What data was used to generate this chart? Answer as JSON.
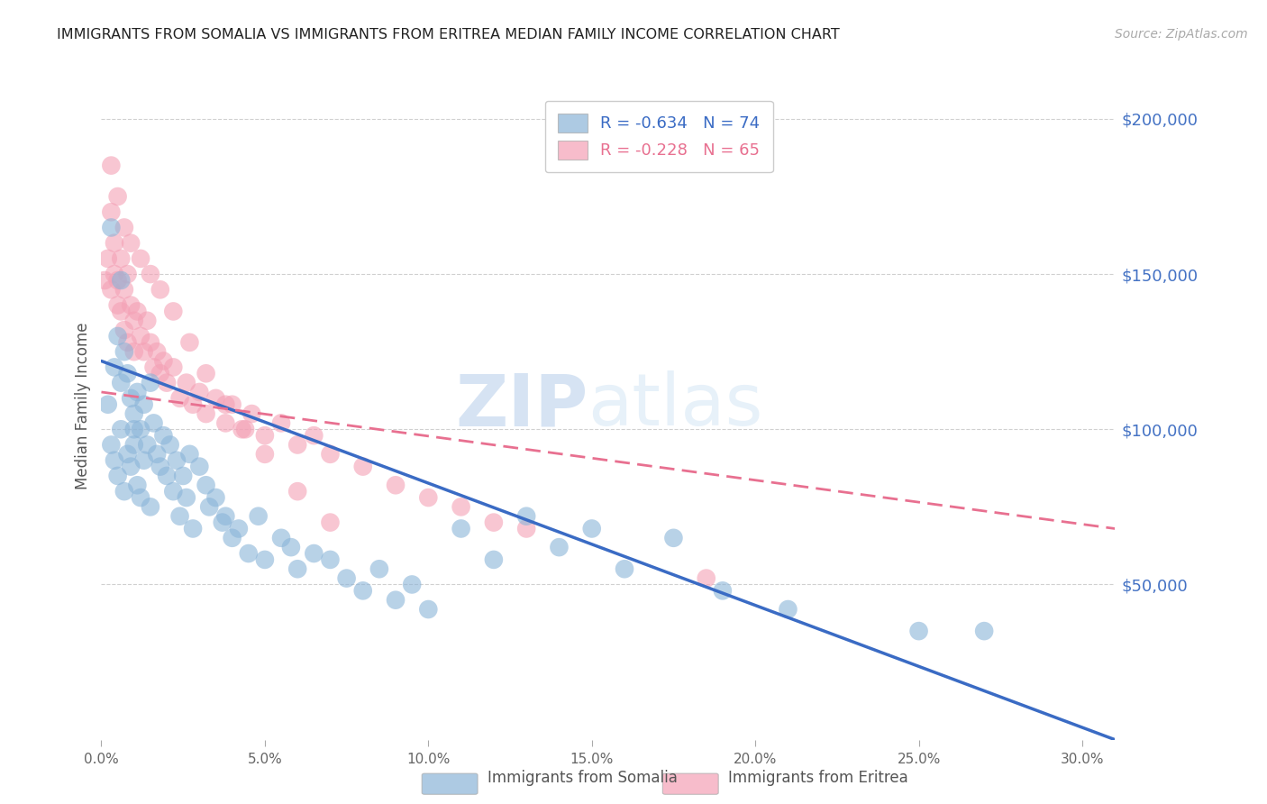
{
  "title": "IMMIGRANTS FROM SOMALIA VS IMMIGRANTS FROM ERITREA MEDIAN FAMILY INCOME CORRELATION CHART",
  "source": "Source: ZipAtlas.com",
  "ylabel": "Median Family Income",
  "xlim": [
    0.0,
    0.31
  ],
  "ylim": [
    0,
    215000
  ],
  "yticks": [
    50000,
    100000,
    150000,
    200000
  ],
  "ytick_labels": [
    "$50,000",
    "$100,000",
    "$150,000",
    "$200,000"
  ],
  "xtick_labels": [
    "0.0%",
    "5.0%",
    "10.0%",
    "15.0%",
    "20.0%",
    "25.0%",
    "30.0%"
  ],
  "xticks": [
    0.0,
    0.05,
    0.1,
    0.15,
    0.2,
    0.25,
    0.3
  ],
  "somalia_color": "#8ab4d8",
  "eritrea_color": "#f4a0b5",
  "somalia_line_color": "#3a6bc4",
  "eritrea_line_color": "#e87090",
  "legend_somalia_R": "-0.634",
  "legend_somalia_N": "74",
  "legend_eritrea_R": "-0.228",
  "legend_eritrea_N": "65",
  "watermark_zip": "ZIP",
  "watermark_atlas": "atlas",
  "background_color": "#ffffff",
  "somalia_scatter_x": [
    0.002,
    0.003,
    0.004,
    0.004,
    0.005,
    0.005,
    0.006,
    0.006,
    0.007,
    0.007,
    0.008,
    0.008,
    0.009,
    0.009,
    0.01,
    0.01,
    0.011,
    0.011,
    0.012,
    0.012,
    0.013,
    0.013,
    0.014,
    0.015,
    0.015,
    0.016,
    0.017,
    0.018,
    0.019,
    0.02,
    0.021,
    0.022,
    0.023,
    0.024,
    0.025,
    0.026,
    0.027,
    0.028,
    0.03,
    0.032,
    0.033,
    0.035,
    0.037,
    0.038,
    0.04,
    0.042,
    0.045,
    0.048,
    0.05,
    0.055,
    0.058,
    0.06,
    0.065,
    0.07,
    0.075,
    0.08,
    0.085,
    0.09,
    0.095,
    0.1,
    0.11,
    0.12,
    0.13,
    0.14,
    0.15,
    0.16,
    0.175,
    0.19,
    0.21,
    0.25,
    0.003,
    0.006,
    0.01,
    0.27
  ],
  "somalia_scatter_y": [
    108000,
    95000,
    120000,
    90000,
    130000,
    85000,
    115000,
    100000,
    125000,
    80000,
    118000,
    92000,
    110000,
    88000,
    105000,
    95000,
    112000,
    82000,
    100000,
    78000,
    108000,
    90000,
    95000,
    115000,
    75000,
    102000,
    92000,
    88000,
    98000,
    85000,
    95000,
    80000,
    90000,
    72000,
    85000,
    78000,
    92000,
    68000,
    88000,
    82000,
    75000,
    78000,
    70000,
    72000,
    65000,
    68000,
    60000,
    72000,
    58000,
    65000,
    62000,
    55000,
    60000,
    58000,
    52000,
    48000,
    55000,
    45000,
    50000,
    42000,
    68000,
    58000,
    72000,
    62000,
    68000,
    55000,
    65000,
    48000,
    42000,
    35000,
    165000,
    148000,
    100000,
    35000
  ],
  "eritrea_scatter_x": [
    0.001,
    0.002,
    0.003,
    0.003,
    0.004,
    0.004,
    0.005,
    0.005,
    0.006,
    0.006,
    0.007,
    0.007,
    0.008,
    0.008,
    0.009,
    0.01,
    0.01,
    0.011,
    0.012,
    0.013,
    0.014,
    0.015,
    0.016,
    0.017,
    0.018,
    0.019,
    0.02,
    0.022,
    0.024,
    0.026,
    0.028,
    0.03,
    0.032,
    0.035,
    0.038,
    0.04,
    0.043,
    0.046,
    0.05,
    0.055,
    0.06,
    0.065,
    0.07,
    0.08,
    0.09,
    0.1,
    0.11,
    0.12,
    0.13,
    0.185,
    0.003,
    0.005,
    0.007,
    0.009,
    0.012,
    0.015,
    0.018,
    0.022,
    0.027,
    0.032,
    0.038,
    0.044,
    0.05,
    0.06,
    0.07
  ],
  "eritrea_scatter_y": [
    148000,
    155000,
    145000,
    170000,
    150000,
    160000,
    148000,
    140000,
    155000,
    138000,
    145000,
    132000,
    150000,
    128000,
    140000,
    135000,
    125000,
    138000,
    130000,
    125000,
    135000,
    128000,
    120000,
    125000,
    118000,
    122000,
    115000,
    120000,
    110000,
    115000,
    108000,
    112000,
    105000,
    110000,
    102000,
    108000,
    100000,
    105000,
    98000,
    102000,
    95000,
    98000,
    92000,
    88000,
    82000,
    78000,
    75000,
    70000,
    68000,
    52000,
    185000,
    175000,
    165000,
    160000,
    155000,
    150000,
    145000,
    138000,
    128000,
    118000,
    108000,
    100000,
    92000,
    80000,
    70000
  ],
  "somalia_trend_x0": 0.0,
  "somalia_trend_y0": 122000,
  "somalia_trend_x1": 0.31,
  "somalia_trend_y1": 0,
  "eritrea_trend_x0": 0.0,
  "eritrea_trend_y0": 112000,
  "eritrea_trend_x1": 0.31,
  "eritrea_trend_y1": 68000
}
